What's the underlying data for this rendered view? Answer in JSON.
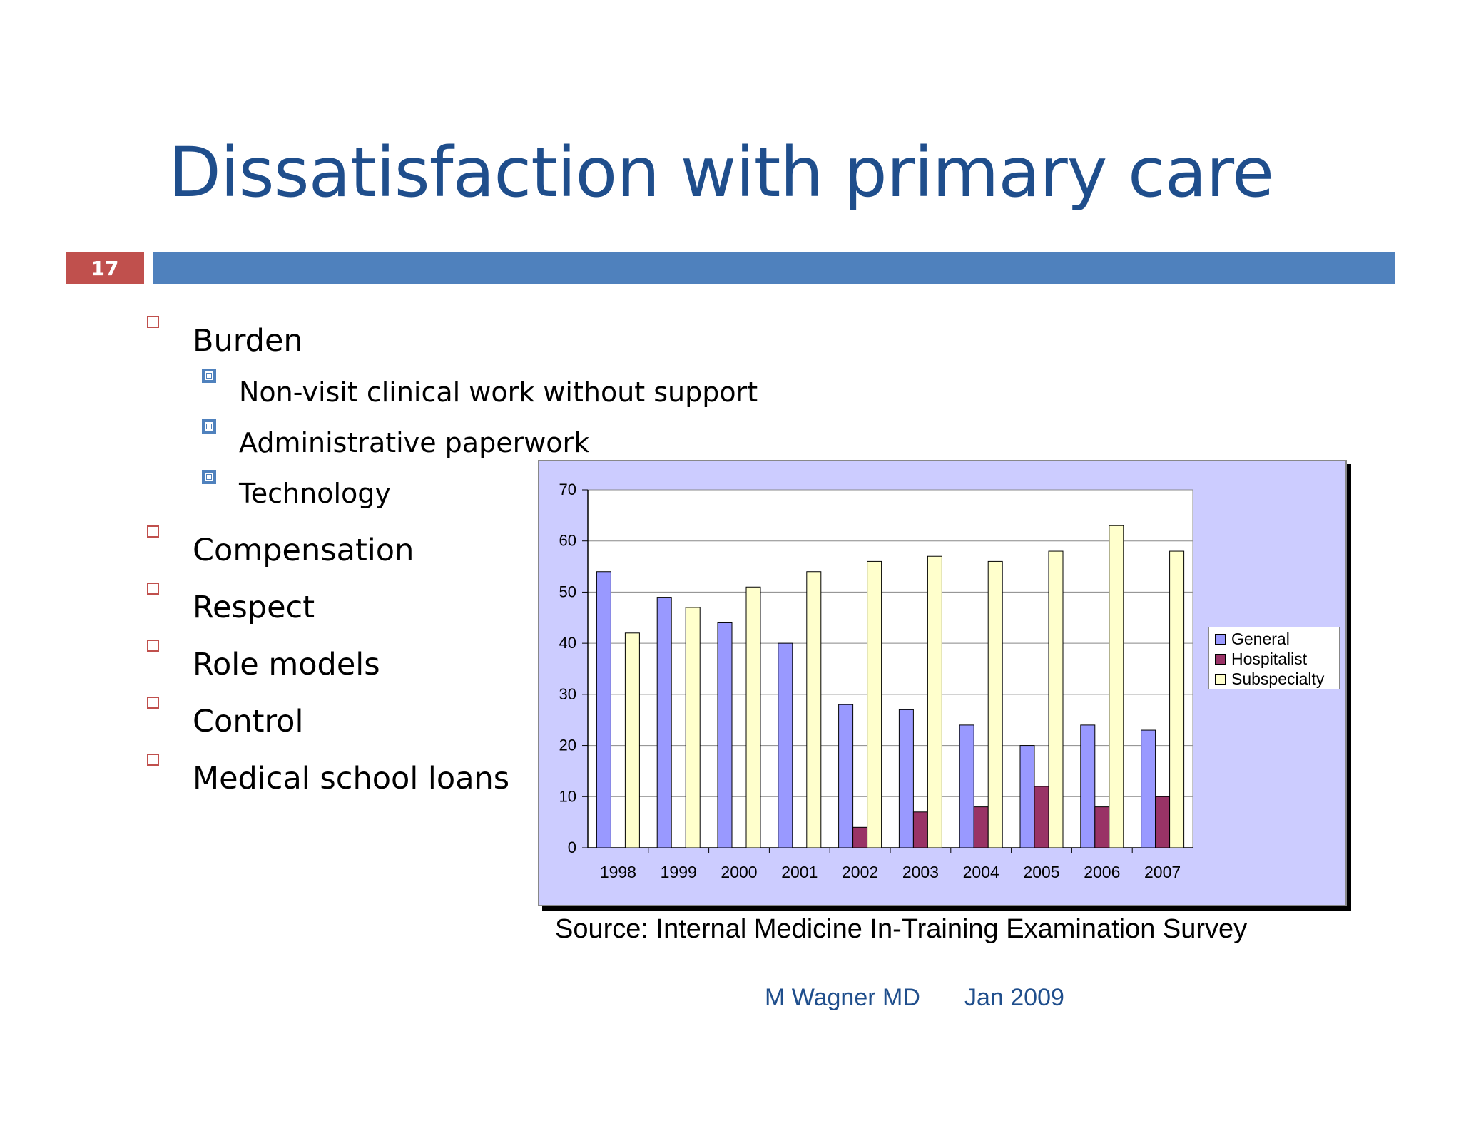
{
  "slide": {
    "title": "Dissatisfaction with primary care",
    "number": "17",
    "bullets": [
      {
        "level": 1,
        "text": "Burden"
      },
      {
        "level": 2,
        "text": "Non-visit clinical work without support"
      },
      {
        "level": 2,
        "text": "Administrative paperwork"
      },
      {
        "level": 2,
        "text": "Technology"
      },
      {
        "level": 1,
        "text": "Compensation"
      },
      {
        "level": 1,
        "text": "Respect"
      },
      {
        "level": 1,
        "text": "Role models"
      },
      {
        "level": 1,
        "text": "Control"
      },
      {
        "level": 1,
        "text": "Medical school loans"
      }
    ],
    "source": "Source: Internal Medicine In-Training Examination Survey",
    "footer_author": "M Wagner MD",
    "footer_date": "Jan 2009",
    "colors": {
      "accent_red": "#c0504d",
      "accent_blue": "#4f81bd",
      "title_blue": "#1f4e8c"
    }
  },
  "chart_data": {
    "type": "bar",
    "categories": [
      "1998",
      "1999",
      "2000",
      "2001",
      "2002",
      "2003",
      "2004",
      "2005",
      "2006",
      "2007"
    ],
    "series": [
      {
        "name": "General",
        "color": "#9999ff",
        "values": [
          54,
          49,
          44,
          40,
          28,
          27,
          24,
          20,
          24,
          23
        ]
      },
      {
        "name": "Hospitalist",
        "color": "#993366",
        "values": [
          0,
          0,
          0,
          0,
          4,
          7,
          8,
          12,
          8,
          10
        ]
      },
      {
        "name": "Subspecialty",
        "color": "#ffffcc",
        "values": [
          42,
          47,
          51,
          54,
          56,
          57,
          56,
          58,
          63,
          58
        ]
      }
    ],
    "yticks": [
      0,
      10,
      20,
      30,
      40,
      50,
      60,
      70
    ],
    "ylim": [
      0,
      70
    ],
    "grid": true,
    "legend_position": "right",
    "title": "",
    "xlabel": "",
    "ylabel": ""
  }
}
